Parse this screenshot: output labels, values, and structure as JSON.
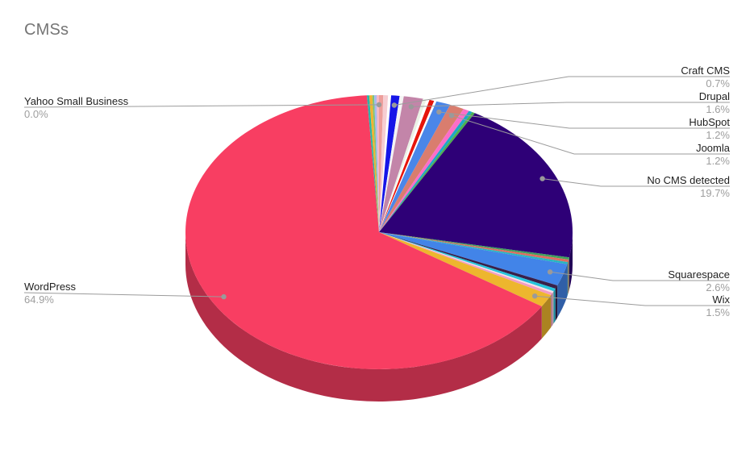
{
  "title": "CMSs",
  "colors": {
    "background": "#FFFFFF",
    "title_text": "#757575",
    "label_text": "#1F1F1F",
    "percent_text": "#9E9E9E",
    "leader_line": "#9B9B9B",
    "wordpress": "#F83E62",
    "no_cms": "#2E0077",
    "squarespace": "#4284E8",
    "wix": "#EDB62E"
  },
  "chart_data": {
    "type": "pie",
    "style": "3d",
    "title": "CMSs",
    "unit": "%",
    "legend_position": "callout-labels",
    "labeled_slices_note": "percent shown under each callout label",
    "slices": [
      {
        "label": "",
        "value": 0.35,
        "color": "#ED9E9B"
      },
      {
        "label": "",
        "value": 0.4,
        "color": "#F6CDD2"
      },
      {
        "label": "",
        "value": 0.25,
        "color": "#FFFFFF"
      },
      {
        "label": "Craft CMS",
        "value": 0.7,
        "color": "#1616E8"
      },
      {
        "label": "",
        "value": 0.35,
        "color": "#F4F4F4"
      },
      {
        "label": "Drupal",
        "value": 1.6,
        "color": "#C385A9"
      },
      {
        "label": "",
        "value": 0.3,
        "color": "#EBF2E6"
      },
      {
        "label": "",
        "value": 0.25,
        "color": "#FFFFFF"
      },
      {
        "label": "",
        "value": 0.4,
        "color": "#E6150B"
      },
      {
        "label": "",
        "value": 0.2,
        "color": "#FFFFFF"
      },
      {
        "label": "HubSpot",
        "value": 1.2,
        "color": "#4A86E8"
      },
      {
        "label": "Joomla",
        "value": 1.2,
        "color": "#D97D6E"
      },
      {
        "label": "",
        "value": 0.5,
        "color": "#FB6EC9"
      },
      {
        "label": "",
        "value": 0.3,
        "color": "#1CA8C8"
      },
      {
        "label": "",
        "value": 0.25,
        "color": "#4CAF50"
      },
      {
        "label": "No CMS detected",
        "value": 19.7,
        "color": "#2E0077"
      },
      {
        "label": "",
        "value": 0.25,
        "color": "#3FA05C"
      },
      {
        "label": "",
        "value": 0.3,
        "color": "#DF6B60"
      },
      {
        "label": "",
        "value": 0.25,
        "color": "#28B6BE"
      },
      {
        "label": "Squarespace",
        "value": 2.6,
        "color": "#4284E8"
      },
      {
        "label": "",
        "value": 0.4,
        "color": "#38204A"
      },
      {
        "label": "",
        "value": 0.35,
        "color": "#25C4DC"
      },
      {
        "label": "",
        "value": 0.2,
        "color": "#F6E0E8"
      },
      {
        "label": "",
        "value": 0.3,
        "color": "#F29BC2"
      },
      {
        "label": "Wix",
        "value": 1.5,
        "color": "#EDB62E"
      },
      {
        "label": "WordPress",
        "value": 64.9,
        "color": "#F83E62"
      },
      {
        "label": "",
        "value": 0.2,
        "color": "#2BB5A8"
      },
      {
        "label": "",
        "value": 0.25,
        "color": "#EFB331"
      },
      {
        "label": "",
        "value": 0.15,
        "color": "#7CC47A"
      },
      {
        "label": "",
        "value": 0.2,
        "color": "#A8B9F0"
      },
      {
        "label": "",
        "value": 0.2,
        "color": "#F6B9C5"
      },
      {
        "label": "Yahoo Small Business",
        "value": 0.0,
        "color": "#BBBBBB"
      }
    ]
  }
}
